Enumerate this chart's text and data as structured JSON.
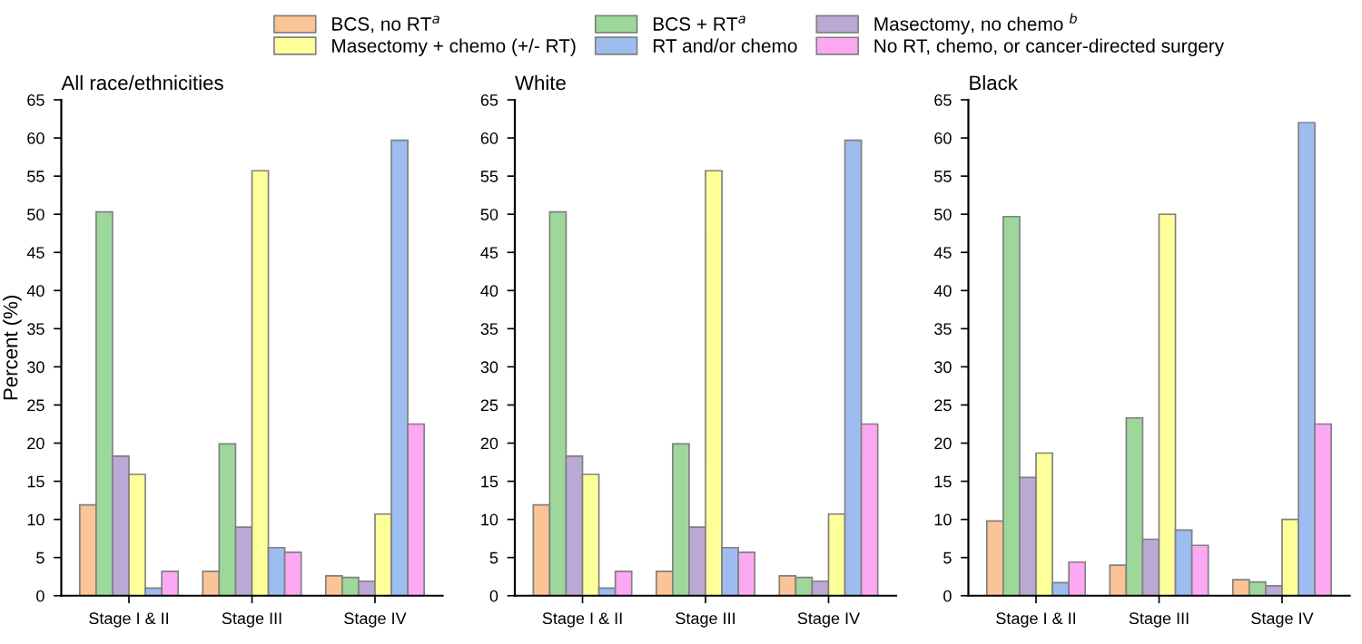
{
  "chart_data": [
    {
      "type": "bar",
      "title": "All race/ethnicities",
      "ylabel": "Percent (%)",
      "categories": [
        "Stage I & II",
        "Stage III",
        "Stage IV"
      ],
      "ylim": [
        0,
        65
      ],
      "yticks": [
        0,
        5,
        10,
        15,
        20,
        25,
        30,
        35,
        40,
        45,
        50,
        55,
        60,
        65
      ],
      "grid": false,
      "legend": "top",
      "series": [
        {
          "name": "BCS, no RT$^{a}$",
          "color": "#fbc496",
          "values": [
            11.9,
            3.2,
            2.6
          ]
        },
        {
          "name": "BCS + RT$^{a}$",
          "color": "#9dd89a",
          "values": [
            50.3,
            19.9,
            2.4
          ]
        },
        {
          "name": "Masectomy, no chemo $^{b}$",
          "color": "#bba8d4",
          "values": [
            18.3,
            9.0,
            1.9
          ]
        },
        {
          "name": "Masectomy + chemo (+/- RT)",
          "color": "#ffff99",
          "values": [
            15.9,
            55.7,
            10.7
          ]
        },
        {
          "name": "RT and/or chemo",
          "color": "#9dbcf0",
          "values": [
            1.0,
            6.3,
            59.7
          ]
        },
        {
          "name": "No RT, chemo, or cancer-directed surgery",
          "color": "#fca8f2",
          "values": [
            3.2,
            5.7,
            22.5
          ]
        }
      ]
    },
    {
      "type": "bar",
      "title": "White",
      "categories": [
        "Stage I & II",
        "Stage III",
        "Stage IV"
      ],
      "ylim": [
        0,
        65
      ],
      "yticks": [
        0,
        5,
        10,
        15,
        20,
        25,
        30,
        35,
        40,
        45,
        50,
        55,
        60,
        65
      ],
      "grid": false,
      "series": [
        {
          "color": "#fbc496",
          "values": [
            11.9,
            3.2,
            2.6
          ]
        },
        {
          "color": "#9dd89a",
          "values": [
            50.3,
            19.9,
            2.4
          ]
        },
        {
          "color": "#bba8d4",
          "values": [
            18.3,
            9.0,
            1.9
          ]
        },
        {
          "color": "#ffff99",
          "values": [
            15.9,
            55.7,
            10.7
          ]
        },
        {
          "color": "#9dbcf0",
          "values": [
            1.0,
            6.3,
            59.7
          ]
        },
        {
          "color": "#fca8f2",
          "values": [
            3.2,
            5.7,
            22.5
          ]
        }
      ]
    },
    {
      "type": "bar",
      "title": "Black",
      "categories": [
        "Stage I & II",
        "Stage III",
        "Stage IV"
      ],
      "ylim": [
        0,
        65
      ],
      "yticks": [
        0,
        5,
        10,
        15,
        20,
        25,
        30,
        35,
        40,
        45,
        50,
        55,
        60,
        65
      ],
      "grid": false,
      "series": [
        {
          "color": "#fbc496",
          "values": [
            9.8,
            4.0,
            2.1
          ]
        },
        {
          "color": "#9dd89a",
          "values": [
            49.7,
            23.3,
            1.8
          ]
        },
        {
          "color": "#bba8d4",
          "values": [
            15.5,
            7.4,
            1.3
          ]
        },
        {
          "color": "#ffff99",
          "values": [
            18.7,
            50.0,
            10.0
          ]
        },
        {
          "color": "#9dbcf0",
          "values": [
            1.7,
            8.6,
            62.0
          ]
        },
        {
          "color": "#fca8f2",
          "values": [
            4.4,
            6.6,
            22.5
          ]
        }
      ]
    }
  ]
}
